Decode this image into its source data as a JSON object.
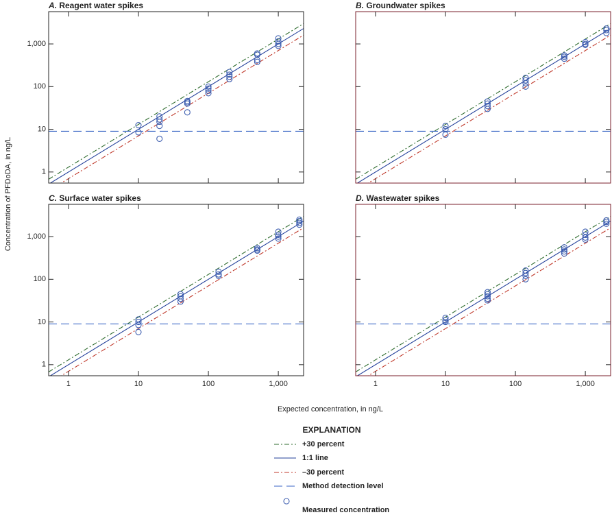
{
  "y_label": "Concentration of PFDoDA, in ng/L",
  "x_label": "Expected concentration, in ng/L",
  "legend_title": "EXPLANATION",
  "reference_lines": [
    {
      "name": "+30 percent",
      "color": "#2e6b2e",
      "dash": "7 3 2 3",
      "factor": 1.3
    },
    {
      "name": "1:1 line",
      "color": "#23409a",
      "dash": "none",
      "factor": 1
    },
    {
      "name": "–30 percent",
      "color": "#c0392b",
      "dash": "7 3 2 3",
      "factor": 0.7
    },
    {
      "name": "Method detection level",
      "color": "#3a66c4",
      "dash": "12 6",
      "level": 9
    }
  ],
  "points": {
    "name": "Measured concentration",
    "color": "#3f5fb0"
  },
  "chart_data": [
    {
      "type": "scatter",
      "panel": "A.",
      "title": "Reagent water spikes",
      "log_x": true,
      "log_y": true,
      "frame_color": "#222222",
      "xtick_labels": false,
      "ytick_labels": true,
      "xlim": [
        0.52,
        2300
      ],
      "ylim": [
        0.55,
        5700
      ],
      "xticks": [
        1,
        10,
        100,
        {
          "value": 1000,
          "label": "1,000"
        }
      ],
      "yticks": [
        1,
        10,
        100,
        {
          "value": 1000,
          "label": "1,000"
        }
      ],
      "x": [
        10,
        10,
        20,
        20,
        20,
        20,
        20,
        50,
        50,
        50,
        50,
        100,
        100,
        100,
        100,
        200,
        200,
        200,
        200,
        500,
        500,
        500,
        500,
        1000,
        1000,
        1000,
        1000
      ],
      "values": [
        12.5,
        8.5,
        20,
        17,
        15,
        12,
        6,
        46,
        43,
        40,
        25,
        100,
        90,
        80,
        70,
        220,
        190,
        170,
        150,
        600,
        560,
        420,
        380,
        1350,
        1150,
        1000,
        900
      ]
    },
    {
      "type": "scatter",
      "panel": "B.",
      "title": "Groundwater spikes",
      "log_x": true,
      "log_y": true,
      "frame_color": "#7a1f2b",
      "xtick_labels": false,
      "ytick_labels": false,
      "xlim": [
        0.52,
        2300
      ],
      "ylim": [
        0.55,
        5700
      ],
      "xticks": [
        1,
        10,
        100,
        {
          "value": 1000,
          "label": "1,000"
        }
      ],
      "yticks": [
        1,
        10,
        100,
        {
          "value": 1000,
          "label": "1,000"
        }
      ],
      "x": [
        10,
        10,
        10,
        40,
        40,
        40,
        40,
        140,
        140,
        140,
        140,
        500,
        500,
        500,
        1000,
        1000,
        1000,
        2000,
        2000,
        2000
      ],
      "values": [
        12,
        10,
        7.5,
        45,
        40,
        35,
        30,
        160,
        140,
        120,
        100,
        540,
        500,
        450,
        1100,
        1000,
        950,
        2300,
        2100,
        1800
      ]
    },
    {
      "type": "scatter",
      "panel": "C.",
      "title": "Surface water spikes",
      "log_x": true,
      "log_y": true,
      "frame_color": "#222222",
      "xtick_labels": true,
      "ytick_labels": true,
      "xlim": [
        0.52,
        2300
      ],
      "ylim": [
        0.55,
        5700
      ],
      "xticks": [
        1,
        10,
        100,
        {
          "value": 1000,
          "label": "1,000"
        }
      ],
      "yticks": [
        1,
        10,
        100,
        {
          "value": 1000,
          "label": "1,000"
        }
      ],
      "x": [
        10,
        10,
        10,
        10,
        40,
        40,
        40,
        40,
        140,
        140,
        140,
        500,
        500,
        500,
        1000,
        1000,
        1000,
        1000,
        2000,
        2000,
        2000,
        2000
      ],
      "values": [
        11.5,
        10,
        8.5,
        5.8,
        45,
        40,
        35,
        30,
        150,
        130,
        120,
        540,
        500,
        470,
        1300,
        1100,
        1000,
        900,
        2500,
        2300,
        2100,
        1900
      ]
    },
    {
      "type": "scatter",
      "panel": "D.",
      "title": "Wastewater spikes",
      "log_x": true,
      "log_y": true,
      "frame_color": "#7a1f2b",
      "xtick_labels": true,
      "ytick_labels": false,
      "xlim": [
        0.52,
        2300
      ],
      "ylim": [
        0.55,
        5700
      ],
      "xticks": [
        1,
        10,
        100,
        {
          "value": 1000,
          "label": "1,000"
        }
      ],
      "yticks": [
        1,
        10,
        100,
        {
          "value": 1000,
          "label": "1,000"
        }
      ],
      "x": [
        10,
        10,
        10,
        40,
        40,
        40,
        40,
        40,
        140,
        140,
        140,
        140,
        500,
        500,
        500,
        500,
        1000,
        1000,
        1000,
        1000,
        2000,
        2000,
        2000
      ],
      "values": [
        12.5,
        11,
        10,
        50,
        45,
        40,
        35,
        32,
        160,
        140,
        120,
        100,
        560,
        500,
        450,
        400,
        1300,
        1100,
        950,
        850,
        2400,
        2200,
        2000
      ]
    }
  ]
}
